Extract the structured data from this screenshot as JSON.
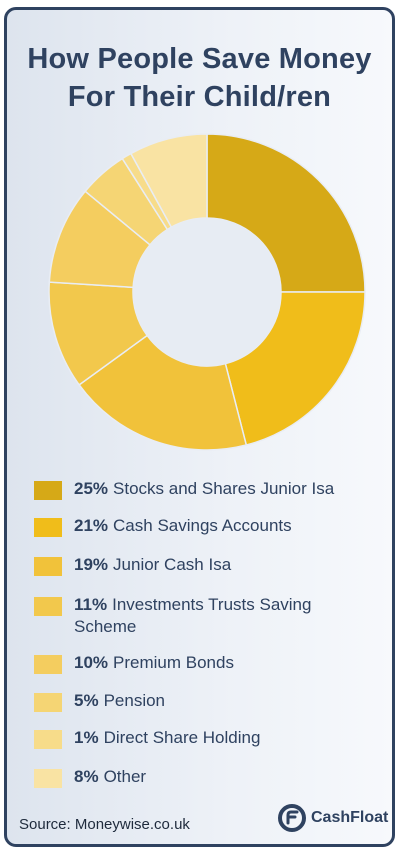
{
  "title": "How People Save Money\nFor Their Child/ren",
  "chart_data": {
    "type": "pie",
    "title": "How People Save Money For Their Child/ren",
    "unit": "%",
    "slices": [
      {
        "label": "Stocks and Shares Junior Isa",
        "value": 25,
        "color": "#d6a917"
      },
      {
        "label": "Cash Savings Accounts",
        "value": 21,
        "color": "#f0bd1a"
      },
      {
        "label": "Junior Cash Isa",
        "value": 19,
        "color": "#f1c23a"
      },
      {
        "label": "Investments Trusts Saving Scheme",
        "value": 11,
        "color": "#f2c84c"
      },
      {
        "label": "Premium Bonds",
        "value": 10,
        "color": "#f4cd5f"
      },
      {
        "label": "Pension",
        "value": 5,
        "color": "#f5d574"
      },
      {
        "label": "Direct Share Holding",
        "value": 1,
        "color": "#f7dc8a"
      },
      {
        "label": "Other",
        "value": 8,
        "color": "#f9e3a3"
      }
    ],
    "legend_position": "bottom"
  },
  "source": "Source: Moneywise.co.uk",
  "brand": {
    "name": "CashFloat",
    "logo_icon": "cashfloat-logo-icon",
    "color": "#2f4260"
  }
}
